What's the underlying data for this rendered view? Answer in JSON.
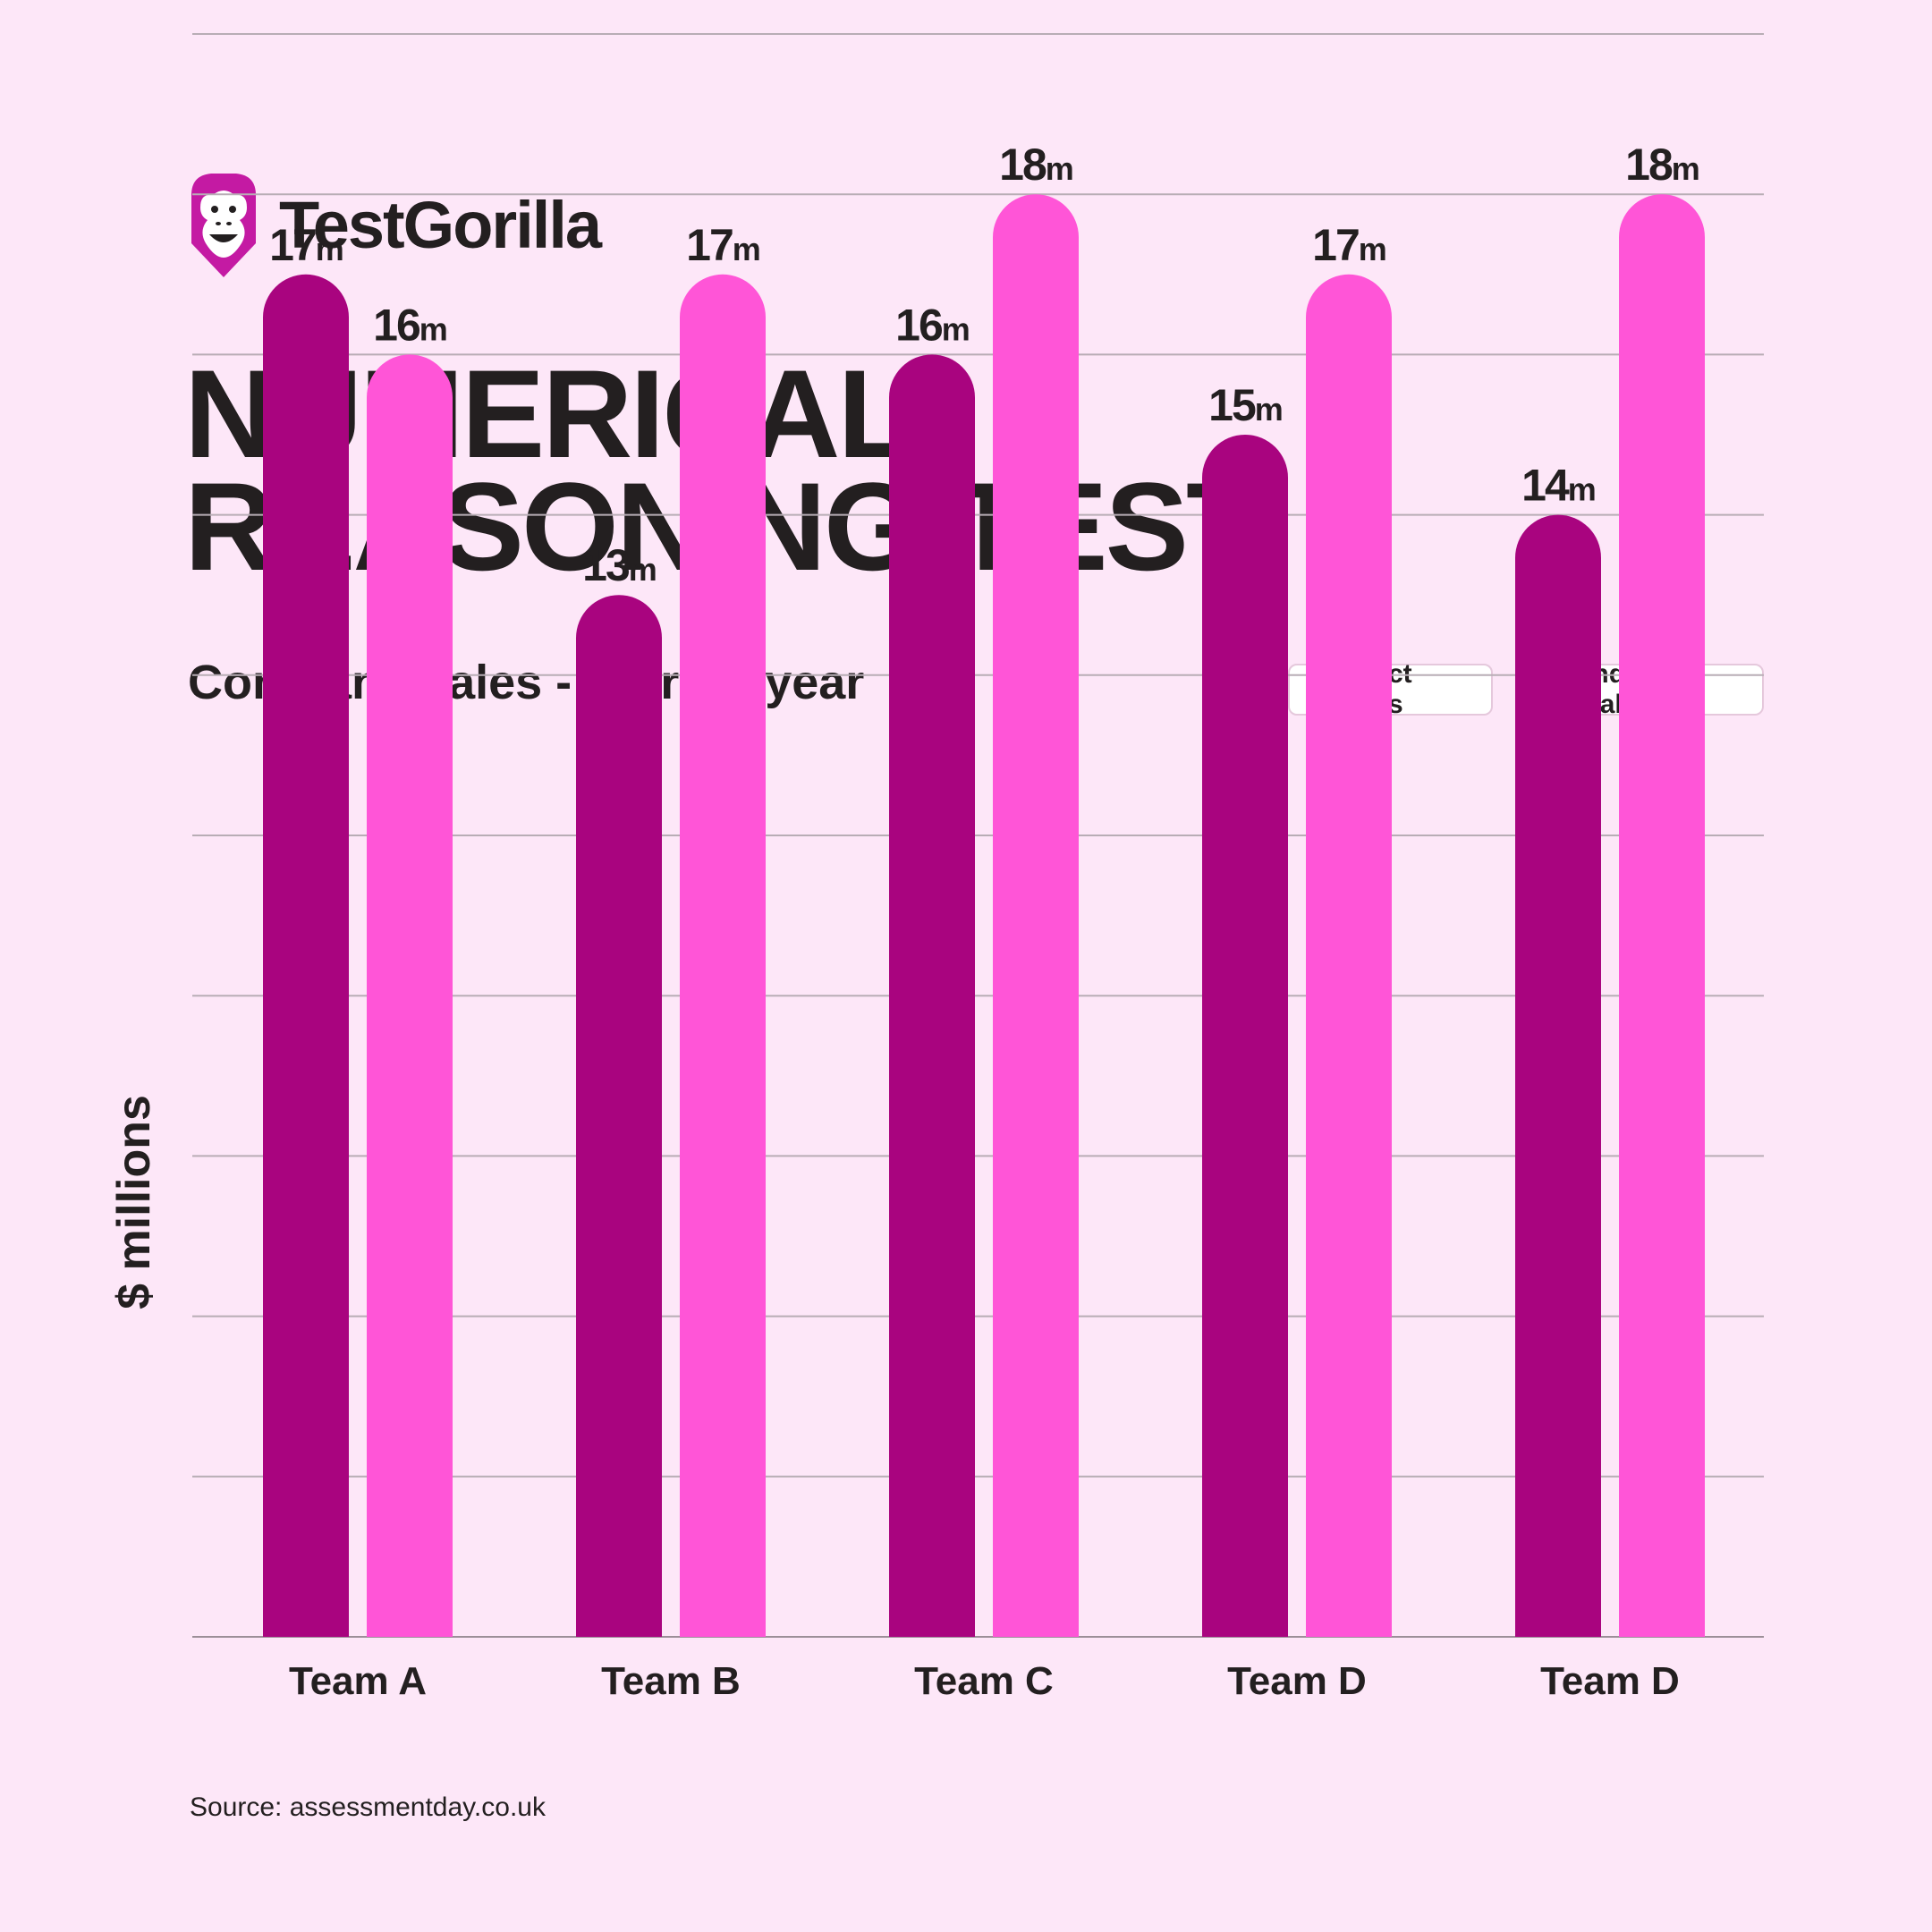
{
  "brand": {
    "name": "TestGorilla",
    "logo_icon": "gorilla-face-icon",
    "color": "#c41aa3"
  },
  "title_lines": [
    "NUMERICAL",
    "REASONING TEST"
  ],
  "source": "Source: assessmentday.co.uk",
  "chart_data": {
    "type": "bar",
    "title": "Company sales - current year",
    "ylabel": "$ millions",
    "xlabel": "",
    "categories": [
      "Team A",
      "Team B",
      "Team C",
      "Team D",
      "Team D"
    ],
    "series": [
      {
        "name": "Direct sales",
        "values": [
          17,
          13,
          16,
          15,
          14
        ],
        "labels": [
          "17",
          "13",
          "16",
          "15",
          "14"
        ],
        "color": "#a9047f"
      },
      {
        "name": "Indirect sales",
        "values": [
          16,
          17,
          18,
          17,
          18
        ],
        "labels": [
          "16",
          "17",
          "18",
          "17",
          "18"
        ],
        "color": "#ff55d7"
      }
    ],
    "value_suffix": "m",
    "ylim": [
      0,
      20
    ],
    "grid": true,
    "legend_position": "top-right"
  }
}
